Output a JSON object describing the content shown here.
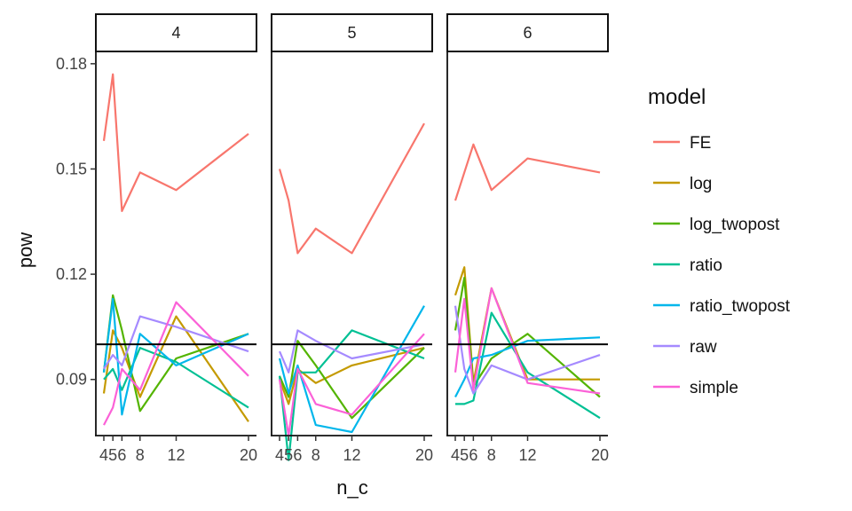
{
  "chart_data": {
    "type": "line",
    "xlabel": "n_c",
    "ylabel": "pow",
    "x_ticks": [
      4,
      5,
      6,
      8,
      12,
      20
    ],
    "y_ticks": [
      "0.09",
      "0.12",
      "0.15",
      "0.18"
    ],
    "ylim": [
      0.074,
      0.1835
    ],
    "reference_line": 0.1,
    "legend": {
      "title": "model",
      "position": "right"
    },
    "panels": [
      {
        "label": "4",
        "series": [
          {
            "name": "FE",
            "color": "#F8766D",
            "values": [
              0.158,
              0.177,
              0.138,
              0.149,
              0.144,
              0.16
            ]
          },
          {
            "name": "log",
            "color": "#C49A00",
            "values": [
              0.086,
              0.104,
              0.099,
              0.085,
              0.108,
              0.078
            ]
          },
          {
            "name": "log_twopost",
            "color": "#53B400",
            "values": [
              0.092,
              0.114,
              0.104,
              0.081,
              0.096,
              0.103
            ]
          },
          {
            "name": "ratio",
            "color": "#00C094",
            "values": [
              0.09,
              0.093,
              0.087,
              0.099,
              0.095,
              0.082
            ]
          },
          {
            "name": "ratio_twopost",
            "color": "#00B6EB",
            "values": [
              0.092,
              0.113,
              0.08,
              0.103,
              0.094,
              0.103
            ]
          },
          {
            "name": "raw",
            "color": "#A58AFF",
            "values": [
              0.093,
              0.097,
              0.094,
              0.108,
              0.105,
              0.098
            ]
          },
          {
            "name": "simple",
            "color": "#FB61D7",
            "values": [
              0.077,
              0.082,
              0.093,
              0.087,
              0.112,
              0.091
            ]
          }
        ]
      },
      {
        "label": "5",
        "series": [
          {
            "name": "FE",
            "color": "#F8766D",
            "values": [
              0.15,
              0.141,
              0.126,
              0.133,
              0.126,
              0.163
            ]
          },
          {
            "name": "log",
            "color": "#C49A00",
            "values": [
              0.09,
              0.083,
              0.093,
              0.089,
              0.094,
              0.099
            ]
          },
          {
            "name": "log_twopost",
            "color": "#53B400",
            "values": [
              0.091,
              0.085,
              0.101,
              0.094,
              0.079,
              0.099
            ]
          },
          {
            "name": "ratio",
            "color": "#00C094",
            "values": [
              0.091,
              0.067,
              0.092,
              0.092,
              0.104,
              0.096
            ]
          },
          {
            "name": "ratio_twopost",
            "color": "#00B6EB",
            "values": [
              0.096,
              0.086,
              0.094,
              0.077,
              0.075,
              0.111
            ]
          },
          {
            "name": "raw",
            "color": "#A58AFF",
            "values": [
              0.098,
              0.092,
              0.104,
              0.101,
              0.096,
              0.1
            ]
          },
          {
            "name": "simple",
            "color": "#FB61D7",
            "values": [
              0.09,
              0.074,
              0.093,
              0.083,
              0.08,
              0.103
            ]
          }
        ]
      },
      {
        "label": "6",
        "series": [
          {
            "name": "FE",
            "color": "#F8766D",
            "values": [
              0.141,
              0.149,
              0.157,
              0.144,
              0.153,
              0.149
            ]
          },
          {
            "name": "log",
            "color": "#C49A00",
            "values": [
              0.114,
              0.122,
              0.089,
              0.116,
              0.09,
              0.09
            ]
          },
          {
            "name": "log_twopost",
            "color": "#53B400",
            "values": [
              0.104,
              0.119,
              0.088,
              0.096,
              0.103,
              0.085
            ]
          },
          {
            "name": "ratio",
            "color": "#00C094",
            "values": [
              0.083,
              0.083,
              0.084,
              0.109,
              0.092,
              0.079
            ]
          },
          {
            "name": "ratio_twopost",
            "color": "#00B6EB",
            "values": [
              0.085,
              0.09,
              0.096,
              0.097,
              0.101,
              0.102
            ]
          },
          {
            "name": "raw",
            "color": "#A58AFF",
            "values": [
              0.111,
              0.093,
              0.086,
              0.094,
              0.09,
              0.097
            ]
          },
          {
            "name": "simple",
            "color": "#FB61D7",
            "values": [
              0.092,
              0.113,
              0.087,
              0.116,
              0.089,
              0.086
            ]
          }
        ]
      }
    ]
  }
}
